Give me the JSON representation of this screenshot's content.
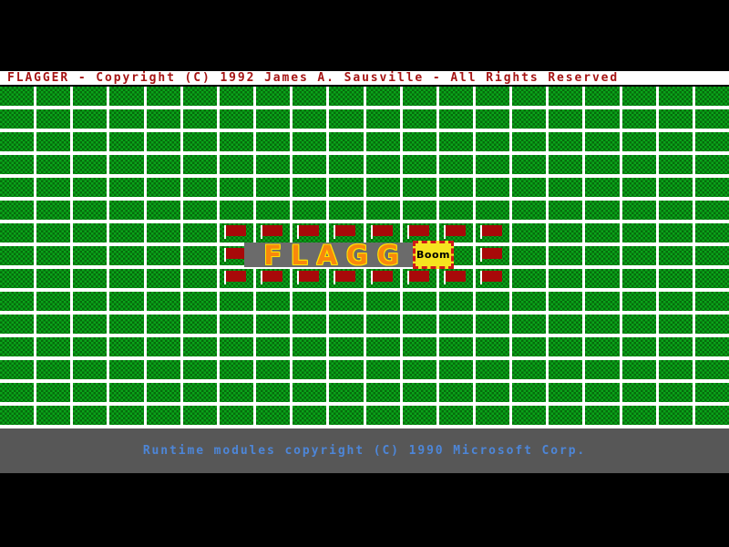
{
  "title_bar": {
    "text": "FLAGGER - Copyright (C) 1992 James A. Sausville - All Rights Reserved"
  },
  "status_bar": {
    "text": "Runtime modules copyright (C) 1990 Microsoft Corp."
  },
  "splash": {
    "logo_text": "FLAGG",
    "boom_label": "Boom"
  },
  "board": {
    "rows": 15,
    "cols": 20,
    "flag_cells": [
      [
        6,
        6
      ],
      [
        6,
        7
      ],
      [
        6,
        8
      ],
      [
        6,
        9
      ],
      [
        6,
        10
      ],
      [
        6,
        11
      ],
      [
        6,
        12
      ],
      [
        6,
        13
      ],
      [
        7,
        6
      ],
      [
        7,
        13
      ],
      [
        8,
        6
      ],
      [
        8,
        7
      ],
      [
        8,
        8
      ],
      [
        8,
        9
      ],
      [
        8,
        10
      ],
      [
        8,
        11
      ],
      [
        8,
        12
      ],
      [
        8,
        13
      ]
    ]
  },
  "colors": {
    "tile_green": "#0aa31a",
    "tile_green_dark": "#066c0c",
    "flag_red": "#a80909",
    "title_red": "#a51414",
    "status_blue": "#4d86d8",
    "status_gray": "#575757",
    "banner_gray": "#6b6b6b",
    "boom_yellow": "#f6e41f",
    "boom_red": "#d01818",
    "logo_orange": "#f8880c",
    "logo_outline": "#ffe600"
  }
}
